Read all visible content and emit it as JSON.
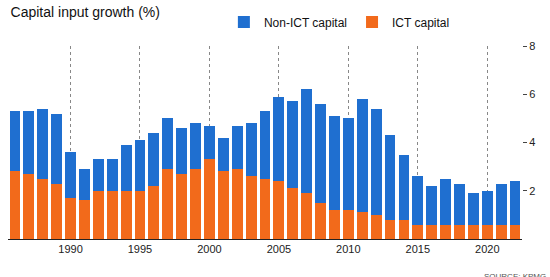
{
  "chart_data": {
    "type": "bar",
    "title": "Capital input growth (%)",
    "source": "SOURCE: KPMG",
    "stacked": true,
    "grid": true,
    "legend": "top",
    "x": [
      1986,
      1987,
      1988,
      1989,
      1990,
      1991,
      1992,
      1993,
      1994,
      1995,
      1996,
      1997,
      1998,
      1999,
      2000,
      2001,
      2002,
      2003,
      2004,
      2005,
      2006,
      2007,
      2008,
      2009,
      2010,
      2011,
      2012,
      2013,
      2014,
      2015,
      2016,
      2017,
      2018,
      2019,
      2020,
      2021,
      2022
    ],
    "series": [
      {
        "name": "ICT capital",
        "color": "#f26a1b",
        "values": [
          2.8,
          2.7,
          2.5,
          2.3,
          1.7,
          1.6,
          2.0,
          2.0,
          2.0,
          2.0,
          2.2,
          2.9,
          2.7,
          2.9,
          3.3,
          2.8,
          2.9,
          2.6,
          2.5,
          2.4,
          2.1,
          1.9,
          1.5,
          1.2,
          1.2,
          1.1,
          1.0,
          0.8,
          0.8,
          0.6,
          0.6,
          0.6,
          0.6,
          0.6,
          0.6,
          0.6,
          0.6
        ]
      },
      {
        "name": "Non-ICT capital",
        "color": "#1f6fd0",
        "values": [
          2.5,
          2.6,
          2.9,
          2.9,
          1.9,
          1.3,
          1.3,
          1.3,
          1.9,
          2.1,
          2.2,
          2.1,
          1.9,
          1.9,
          1.4,
          1.4,
          1.8,
          2.2,
          2.8,
          3.5,
          3.6,
          4.3,
          4.1,
          3.9,
          3.8,
          4.7,
          4.4,
          3.5,
          2.7,
          2.0,
          1.6,
          1.9,
          1.7,
          1.3,
          1.4,
          1.7,
          1.8
        ]
      }
    ],
    "xlim": [
      1985.5,
      2022.5
    ],
    "xticks": [
      1990,
      1995,
      2000,
      2005,
      2010,
      2015,
      2020
    ],
    "ylim": [
      0,
      8
    ],
    "yticks": [
      2,
      4,
      6,
      8
    ]
  }
}
